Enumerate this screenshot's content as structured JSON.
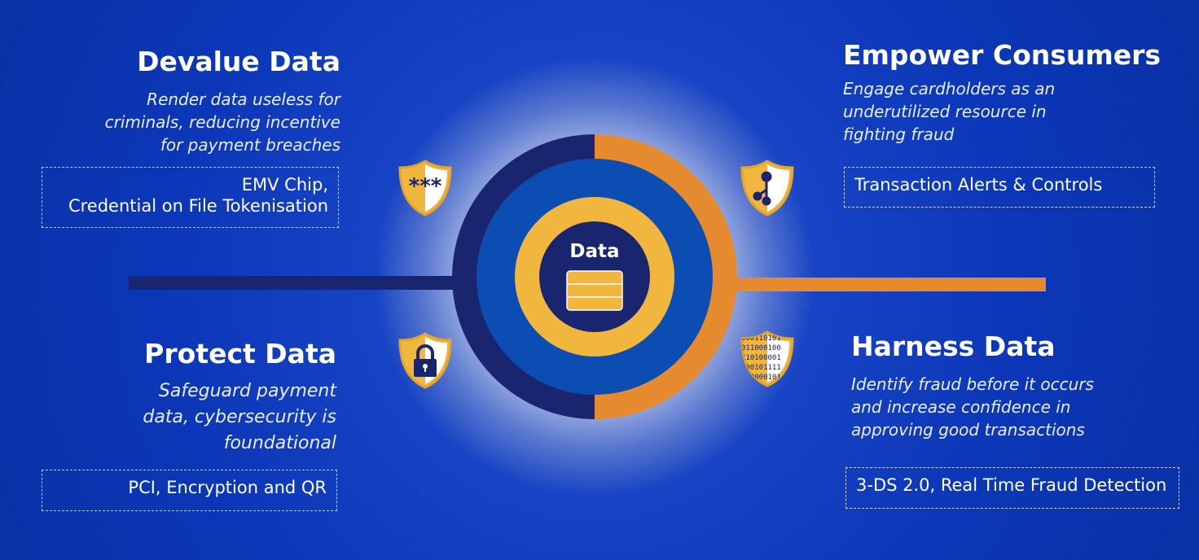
{
  "center": {
    "label": "Data",
    "icon": "database-icon"
  },
  "colors": {
    "background": "#0b37b8",
    "navy": "#1a2570",
    "orange": "#e58a2e",
    "yellow": "#f0b63d",
    "blue": "#0c4db3"
  },
  "quadrants": {
    "devalue": {
      "title": "Devalue Data",
      "subtitle": [
        "Render data useless for",
        "criminals, reducing incentive",
        "for payment breaches"
      ],
      "examples": [
        "EMV Chip,",
        "Credential on File Tokenisation"
      ],
      "icon": "asterisk-shield-icon"
    },
    "empower": {
      "title": "Empower Consumers",
      "subtitle": [
        "Engage cardholders as an",
        "underutilized resource in",
        "fighting fraud"
      ],
      "examples": [
        "Transaction Alerts & Controls"
      ],
      "icon": "network-shield-icon"
    },
    "protect": {
      "title": "Protect Data",
      "subtitle": [
        "Safeguard payment",
        "data, cybersecurity is",
        "foundational"
      ],
      "examples": [
        "PCI, Encryption and QR"
      ],
      "icon": "lock-shield-icon"
    },
    "harness": {
      "title": "Harness Data",
      "subtitle": [
        "Identify fraud before it occurs",
        "and increase confidence in",
        "approving good transactions"
      ],
      "examples": [
        "3-DS 2.0, Real Time Fraud Detection"
      ],
      "icon": "binary-shield-icon"
    }
  }
}
